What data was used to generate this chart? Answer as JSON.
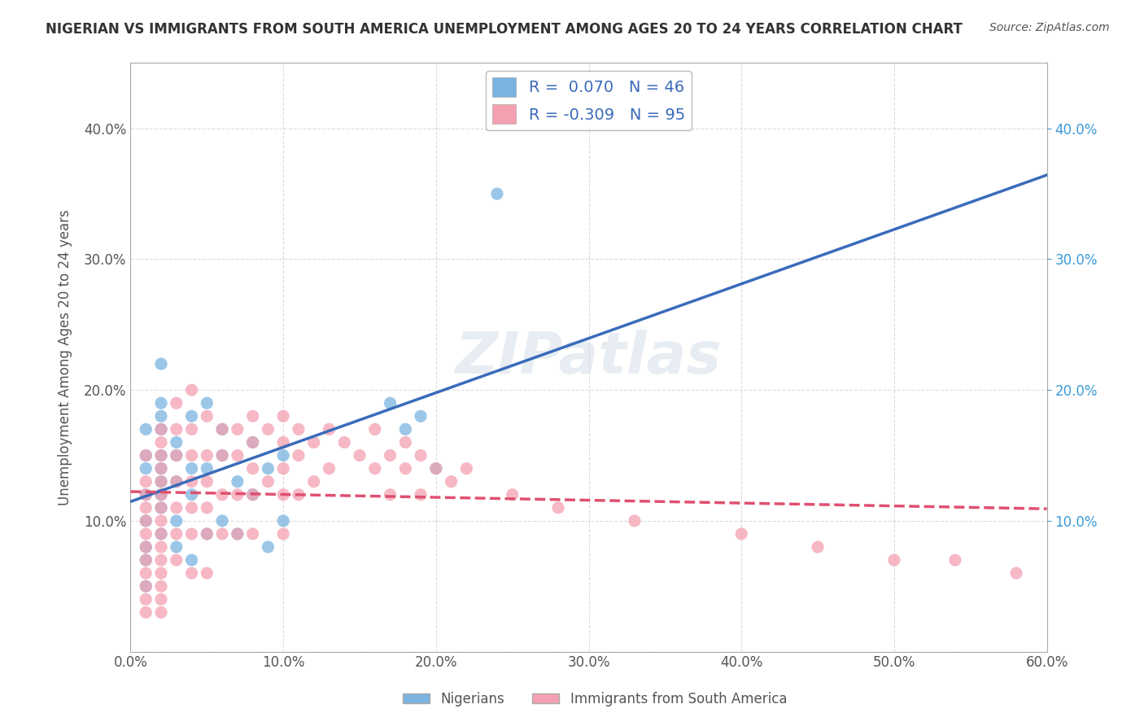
{
  "title": "NIGERIAN VS IMMIGRANTS FROM SOUTH AMERICA UNEMPLOYMENT AMONG AGES 20 TO 24 YEARS CORRELATION CHART",
  "source": "Source: ZipAtlas.com",
  "xlabel": "",
  "ylabel": "Unemployment Among Ages 20 to 24 years",
  "xlim": [
    0.0,
    0.6
  ],
  "ylim": [
    0.0,
    0.45
  ],
  "x_ticks": [
    0.0,
    0.1,
    0.2,
    0.3,
    0.4,
    0.5,
    0.6
  ],
  "x_tick_labels": [
    "0.0%",
    "10.0%",
    "20.0%",
    "30.0%",
    "40.0%",
    "50.0%",
    "60.0%"
  ],
  "y_ticks": [
    0.0,
    0.1,
    0.2,
    0.3,
    0.4
  ],
  "y_tick_labels": [
    "",
    "10.0%",
    "20.0%",
    "30.0%",
    "40.0%"
  ],
  "blue_R": 0.07,
  "blue_N": 46,
  "pink_R": -0.309,
  "pink_N": 95,
  "blue_scatter_x": [
    0.01,
    0.01,
    0.01,
    0.01,
    0.01,
    0.01,
    0.01,
    0.01,
    0.02,
    0.02,
    0.02,
    0.02,
    0.02,
    0.02,
    0.02,
    0.02,
    0.02,
    0.02,
    0.03,
    0.03,
    0.03,
    0.03,
    0.03,
    0.04,
    0.04,
    0.04,
    0.04,
    0.05,
    0.05,
    0.05,
    0.06,
    0.06,
    0.06,
    0.07,
    0.07,
    0.08,
    0.08,
    0.09,
    0.09,
    0.1,
    0.1,
    0.17,
    0.18,
    0.19,
    0.2,
    0.24
  ],
  "blue_scatter_y": [
    0.14,
    0.17,
    0.12,
    0.15,
    0.1,
    0.08,
    0.07,
    0.05,
    0.22,
    0.19,
    0.18,
    0.17,
    0.15,
    0.14,
    0.13,
    0.12,
    0.11,
    0.09,
    0.16,
    0.15,
    0.13,
    0.1,
    0.08,
    0.18,
    0.14,
    0.12,
    0.07,
    0.19,
    0.14,
    0.09,
    0.17,
    0.15,
    0.1,
    0.13,
    0.09,
    0.16,
    0.12,
    0.14,
    0.08,
    0.15,
    0.1,
    0.19,
    0.17,
    0.18,
    0.14,
    0.35
  ],
  "pink_scatter_x": [
    0.01,
    0.01,
    0.01,
    0.01,
    0.01,
    0.01,
    0.01,
    0.01,
    0.01,
    0.01,
    0.01,
    0.01,
    0.02,
    0.02,
    0.02,
    0.02,
    0.02,
    0.02,
    0.02,
    0.02,
    0.02,
    0.02,
    0.02,
    0.02,
    0.02,
    0.02,
    0.02,
    0.03,
    0.03,
    0.03,
    0.03,
    0.03,
    0.03,
    0.03,
    0.04,
    0.04,
    0.04,
    0.04,
    0.04,
    0.04,
    0.04,
    0.05,
    0.05,
    0.05,
    0.05,
    0.05,
    0.05,
    0.06,
    0.06,
    0.06,
    0.06,
    0.07,
    0.07,
    0.07,
    0.07,
    0.08,
    0.08,
    0.08,
    0.08,
    0.08,
    0.09,
    0.09,
    0.1,
    0.1,
    0.1,
    0.1,
    0.1,
    0.11,
    0.11,
    0.11,
    0.12,
    0.12,
    0.13,
    0.13,
    0.14,
    0.15,
    0.16,
    0.16,
    0.17,
    0.17,
    0.18,
    0.18,
    0.19,
    0.19,
    0.2,
    0.21,
    0.22,
    0.25,
    0.28,
    0.33,
    0.4,
    0.45,
    0.5,
    0.54,
    0.58
  ],
  "pink_scatter_y": [
    0.15,
    0.13,
    0.12,
    0.11,
    0.1,
    0.09,
    0.08,
    0.07,
    0.06,
    0.05,
    0.04,
    0.03,
    0.17,
    0.16,
    0.15,
    0.14,
    0.13,
    0.12,
    0.11,
    0.1,
    0.09,
    0.08,
    0.07,
    0.06,
    0.05,
    0.04,
    0.03,
    0.19,
    0.17,
    0.15,
    0.13,
    0.11,
    0.09,
    0.07,
    0.2,
    0.17,
    0.15,
    0.13,
    0.11,
    0.09,
    0.06,
    0.18,
    0.15,
    0.13,
    0.11,
    0.09,
    0.06,
    0.17,
    0.15,
    0.12,
    0.09,
    0.17,
    0.15,
    0.12,
    0.09,
    0.18,
    0.16,
    0.14,
    0.12,
    0.09,
    0.17,
    0.13,
    0.18,
    0.16,
    0.14,
    0.12,
    0.09,
    0.17,
    0.15,
    0.12,
    0.16,
    0.13,
    0.17,
    0.14,
    0.16,
    0.15,
    0.17,
    0.14,
    0.15,
    0.12,
    0.14,
    0.16,
    0.15,
    0.12,
    0.14,
    0.13,
    0.14,
    0.12,
    0.11,
    0.1,
    0.09,
    0.08,
    0.07,
    0.07,
    0.06
  ],
  "blue_color": "#7ab3e0",
  "pink_color": "#f4a0b0",
  "blue_line_color": "#3a6bba",
  "pink_line_color": "#e05070",
  "legend_text_color": "#3a6bba",
  "background_color": "#ffffff",
  "grid_color": "#cccccc",
  "watermark": "ZIPatlas",
  "right_y_ticks": [
    0.1,
    0.2,
    0.3,
    0.4
  ],
  "right_y_tick_labels": [
    "10.0%",
    "20.0%",
    "30.0%",
    "40.0%"
  ]
}
